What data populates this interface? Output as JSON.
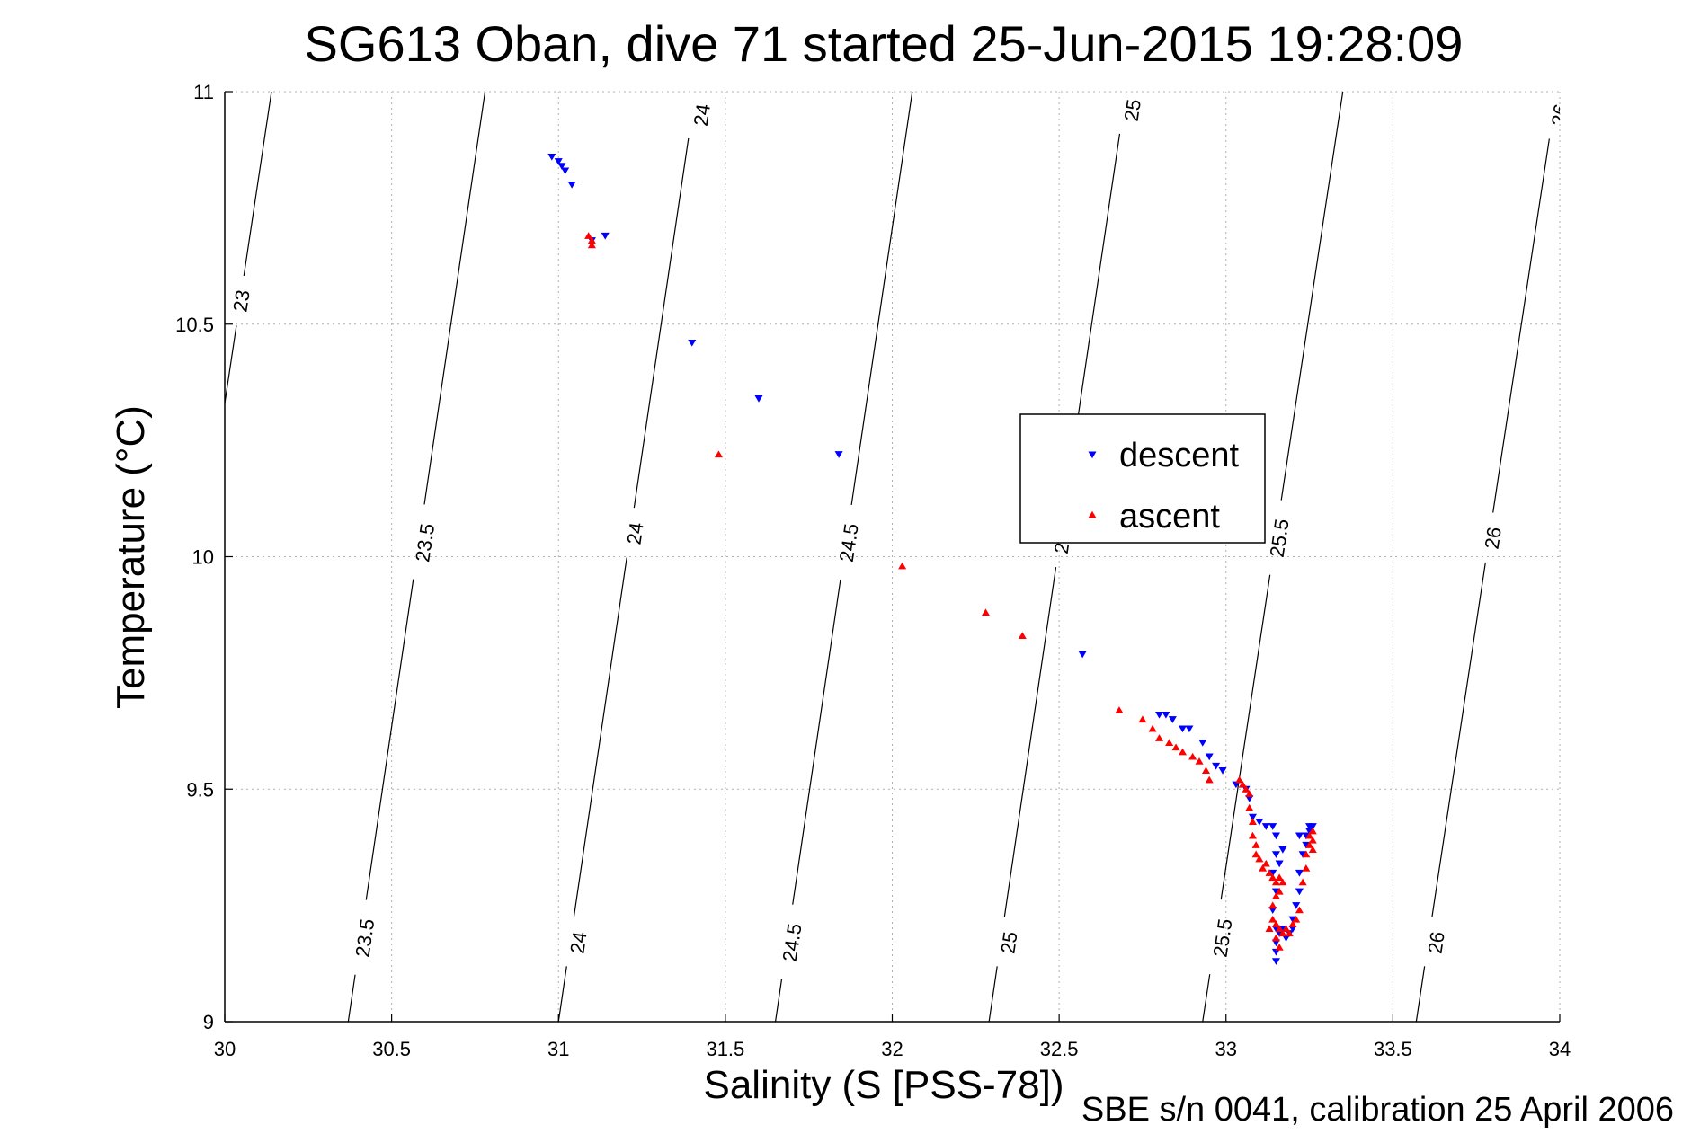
{
  "chart_data": {
    "type": "scatter",
    "title": "SG613 Oban, dive 71 started 25-Jun-2015 19:28:09",
    "xlabel": "Salinity (S [PSS-78])",
    "ylabel": "Temperature (°C)",
    "footer": "SBE s/n 0041, calibration 25 April 2006",
    "xlim": [
      30,
      34
    ],
    "ylim": [
      9,
      11
    ],
    "xticks": [
      "30",
      "30.5",
      "31",
      "31.5",
      "32",
      "32.5",
      "33",
      "33.5",
      "34"
    ],
    "yticks": [
      "9",
      "9.5",
      "10",
      "10.5",
      "11"
    ],
    "grid": true,
    "legend_position": "center-right",
    "legend": [
      "descent",
      "ascent"
    ],
    "series": [
      {
        "name": "descent",
        "color": "#0000ff",
        "marker": "triangle-down",
        "points": [
          [
            30.98,
            10.86
          ],
          [
            31.0,
            10.85
          ],
          [
            31.01,
            10.84
          ],
          [
            31.02,
            10.83
          ],
          [
            31.04,
            10.8
          ],
          [
            31.1,
            10.68
          ],
          [
            31.14,
            10.69
          ],
          [
            31.4,
            10.46
          ],
          [
            31.6,
            10.34
          ],
          [
            31.84,
            10.22
          ],
          [
            32.57,
            9.79
          ],
          [
            32.8,
            9.66
          ],
          [
            32.82,
            9.66
          ],
          [
            32.84,
            9.65
          ],
          [
            32.87,
            9.63
          ],
          [
            32.89,
            9.63
          ],
          [
            32.93,
            9.6
          ],
          [
            32.95,
            9.57
          ],
          [
            32.97,
            9.55
          ],
          [
            32.99,
            9.54
          ],
          [
            33.03,
            9.51
          ],
          [
            33.06,
            9.5
          ],
          [
            33.07,
            9.48
          ],
          [
            33.08,
            9.44
          ],
          [
            33.1,
            9.43
          ],
          [
            33.12,
            9.42
          ],
          [
            33.14,
            9.42
          ],
          [
            33.15,
            9.4
          ],
          [
            33.15,
            9.36
          ],
          [
            33.14,
            9.32
          ],
          [
            33.15,
            9.28
          ],
          [
            33.14,
            9.24
          ],
          [
            33.15,
            9.2
          ],
          [
            33.15,
            9.17
          ],
          [
            33.15,
            9.15
          ],
          [
            33.15,
            9.13
          ],
          [
            33.16,
            9.19
          ],
          [
            33.17,
            9.2
          ],
          [
            33.18,
            9.18
          ],
          [
            33.19,
            9.19
          ],
          [
            33.2,
            9.2
          ],
          [
            33.2,
            9.22
          ],
          [
            33.21,
            9.25
          ],
          [
            33.22,
            9.28
          ],
          [
            33.22,
            9.32
          ],
          [
            33.23,
            9.36
          ],
          [
            33.24,
            9.38
          ],
          [
            33.24,
            9.4
          ],
          [
            33.25,
            9.41
          ],
          [
            33.26,
            9.42
          ],
          [
            33.25,
            9.42
          ],
          [
            33.22,
            9.4
          ],
          [
            33.17,
            9.37
          ],
          [
            33.16,
            9.34
          ]
        ]
      },
      {
        "name": "ascent",
        "color": "#ff0000",
        "marker": "triangle-up",
        "points": [
          [
            31.09,
            10.69
          ],
          [
            31.1,
            10.68
          ],
          [
            31.1,
            10.67
          ],
          [
            31.48,
            10.22
          ],
          [
            32.03,
            9.98
          ],
          [
            32.28,
            9.88
          ],
          [
            32.39,
            9.83
          ],
          [
            32.68,
            9.67
          ],
          [
            32.75,
            9.65
          ],
          [
            32.78,
            9.63
          ],
          [
            32.8,
            9.61
          ],
          [
            32.83,
            9.6
          ],
          [
            32.85,
            9.59
          ],
          [
            32.87,
            9.58
          ],
          [
            32.9,
            9.57
          ],
          [
            32.92,
            9.56
          ],
          [
            32.94,
            9.54
          ],
          [
            32.95,
            9.52
          ],
          [
            33.04,
            9.52
          ],
          [
            33.05,
            9.51
          ],
          [
            33.06,
            9.5
          ],
          [
            33.07,
            9.49
          ],
          [
            33.07,
            9.46
          ],
          [
            33.08,
            9.43
          ],
          [
            33.08,
            9.4
          ],
          [
            33.09,
            9.38
          ],
          [
            33.09,
            9.36
          ],
          [
            33.1,
            9.35
          ],
          [
            33.11,
            9.33
          ],
          [
            33.12,
            9.34
          ],
          [
            33.13,
            9.32
          ],
          [
            33.14,
            9.31
          ],
          [
            33.15,
            9.3
          ],
          [
            33.16,
            9.31
          ],
          [
            33.16,
            9.28
          ],
          [
            33.17,
            9.3
          ],
          [
            33.15,
            9.27
          ],
          [
            33.14,
            9.25
          ],
          [
            33.14,
            9.22
          ],
          [
            33.15,
            9.21
          ],
          [
            33.13,
            9.2
          ],
          [
            33.16,
            9.2
          ],
          [
            33.17,
            9.19
          ],
          [
            33.18,
            9.2
          ],
          [
            33.19,
            9.19
          ],
          [
            33.2,
            9.21
          ],
          [
            33.21,
            9.22
          ],
          [
            33.22,
            9.24
          ],
          [
            33.23,
            9.3
          ],
          [
            33.24,
            9.33
          ],
          [
            33.24,
            9.36
          ],
          [
            33.25,
            9.38
          ],
          [
            33.25,
            9.4
          ],
          [
            33.26,
            9.41
          ],
          [
            33.26,
            9.39
          ],
          [
            33.26,
            9.37
          ],
          [
            33.15,
            9.18
          ],
          [
            33.16,
            9.16
          ]
        ]
      }
    ],
    "isopycnals": [
      {
        "label": "23",
        "points": [
          [
            30.0,
            10.33
          ],
          [
            30.14,
            11.0
          ]
        ],
        "label_positions": [
          [
            30.05,
            10.55
          ]
        ]
      },
      {
        "label": "23.5",
        "points": [
          [
            30.37,
            9.0
          ],
          [
            30.78,
            11.0
          ]
        ],
        "label_positions": [
          [
            30.42,
            9.18
          ],
          [
            30.6,
            10.03
          ]
        ]
      },
      {
        "label": "24",
        "points": [
          [
            31.0,
            9.0
          ],
          [
            31.41,
            11.0
          ]
        ],
        "label_positions": [
          [
            31.06,
            9.17
          ],
          [
            31.23,
            10.05
          ],
          [
            31.43,
            10.95
          ]
        ]
      },
      {
        "label": "24.5",
        "points": [
          [
            31.65,
            9.0
          ],
          [
            32.06,
            11.0
          ]
        ],
        "label_positions": [
          [
            31.7,
            9.17
          ],
          [
            31.87,
            10.03
          ]
        ]
      },
      {
        "label": "25",
        "points": [
          [
            32.29,
            9.0
          ],
          [
            32.7,
            11.0
          ]
        ],
        "label_positions": [
          [
            32.35,
            9.17
          ],
          [
            32.51,
            10.03
          ],
          [
            32.72,
            10.96
          ]
        ]
      },
      {
        "label": "25.5",
        "points": [
          [
            32.93,
            9.0
          ],
          [
            33.35,
            11.0
          ]
        ],
        "label_positions": [
          [
            32.99,
            9.18
          ],
          [
            33.16,
            10.04
          ]
        ]
      },
      {
        "label": "26",
        "points": [
          [
            33.57,
            9.0
          ],
          [
            33.99,
            11.0
          ]
        ],
        "label_positions": [
          [
            33.63,
            9.17
          ],
          [
            33.8,
            10.04
          ],
          [
            34.0,
            10.95
          ]
        ]
      }
    ]
  }
}
